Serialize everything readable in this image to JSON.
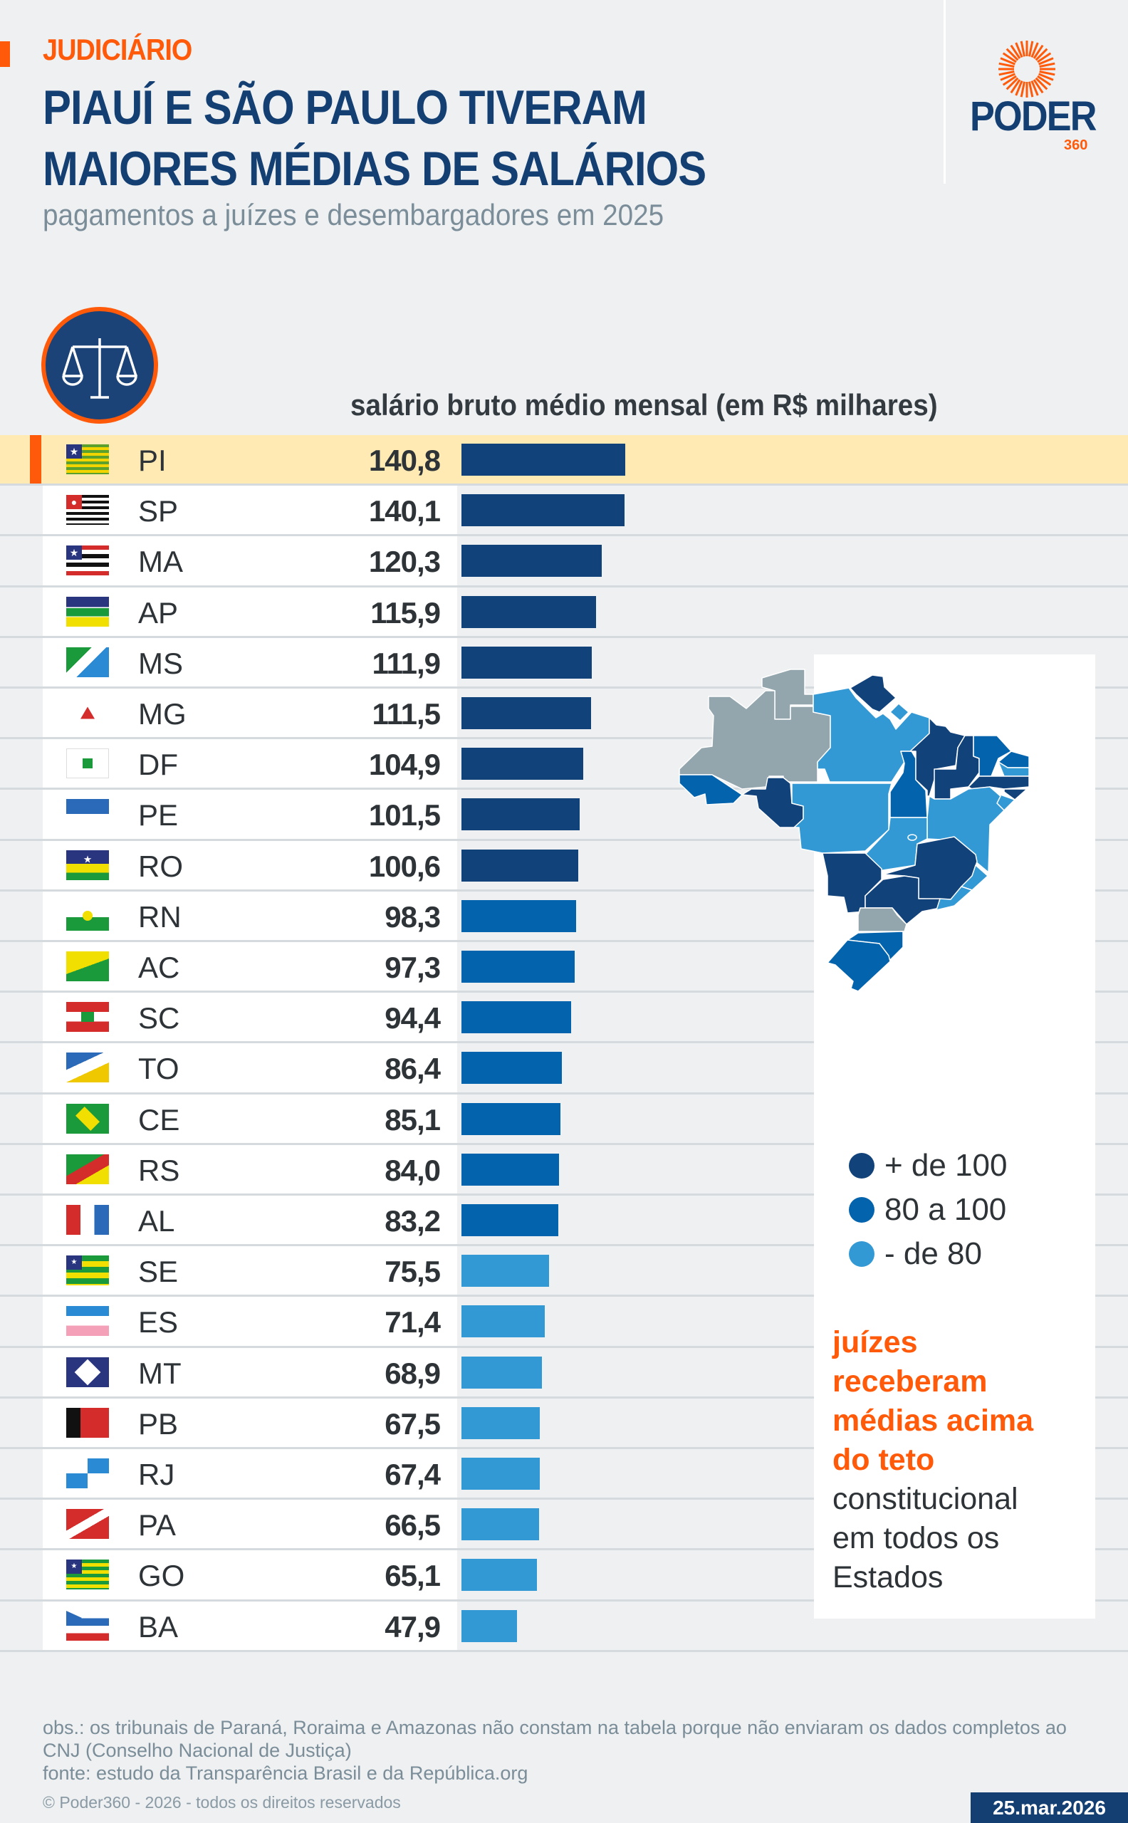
{
  "header": {
    "kicker": "JUDICIÁRIO",
    "title_line1": "PIAUÍ E SÃO PAULO TIVERAM",
    "title_line2": "MAIORES MÉDIAS DE SALÁRIOS",
    "subtitle": "pagamentos a juízes e desembargadores em 2025"
  },
  "logo": {
    "name": "PODER",
    "suffix": "360",
    "icon": "sun-rays-logo-icon"
  },
  "colors": {
    "accent": "#ff5a0a",
    "navy": "#133f72",
    "tier_high": "#12427a",
    "tier_mid": "#0363ad",
    "tier_low": "#3399d5",
    "no_data": "#93a5ad",
    "highlight": "#ffeab3"
  },
  "chart_data": {
    "type": "bar",
    "orientation": "horizontal",
    "title": "salário bruto médio mensal (em R$ milhares)",
    "highlighted": "PI",
    "categories": [
      "PI",
      "SP",
      "MA",
      "AP",
      "MS",
      "MG",
      "DF",
      "PE",
      "RO",
      "RN",
      "AC",
      "SC",
      "TO",
      "CE",
      "RS",
      "AL",
      "SE",
      "ES",
      "MT",
      "PB",
      "RJ",
      "PA",
      "GO",
      "BA"
    ],
    "values": [
      140.8,
      140.1,
      120.3,
      115.9,
      111.9,
      111.5,
      104.9,
      101.5,
      100.6,
      98.3,
      97.3,
      94.4,
      86.4,
      85.1,
      84.0,
      83.2,
      75.5,
      71.4,
      68.9,
      67.5,
      67.4,
      66.5,
      65.1,
      47.9
    ],
    "labels": [
      "140,8",
      "140,1",
      "120,3",
      "115,9",
      "111,9",
      "111,5",
      "104,9",
      "101,5",
      "100,6",
      "98,3",
      "97,3",
      "94,4",
      "86,4",
      "85,1",
      "84,0",
      "83,2",
      "75,5",
      "71,4",
      "68,9",
      "67,5",
      "67,4",
      "66,5",
      "65,1",
      "47,9"
    ],
    "xlim": [
      0,
      140.8
    ]
  },
  "legend": {
    "items": [
      {
        "label": "+ de 100",
        "color": "#12427a"
      },
      {
        "label": "80 a 100",
        "color": "#0363ad"
      },
      {
        "label": "- de 80",
        "color": "#3399d5"
      }
    ]
  },
  "note": {
    "highlight": [
      "juízes",
      "receberam",
      "médias acima",
      "do teto"
    ],
    "rest": [
      "constitucional",
      "em todos os",
      "Estados"
    ]
  },
  "footer": {
    "obs": "obs.: os tribunais de Paraná, Roraima e Amazonas não constam na tabela porque não enviaram os dados completos ao CNJ (Conselho Nacional de Justiça)",
    "source": "fonte: estudo da Transparência Brasil e da República.org",
    "copyright": "© Poder360 - 2026 - todos os direitos reservados",
    "date": "25.mar.2026"
  }
}
